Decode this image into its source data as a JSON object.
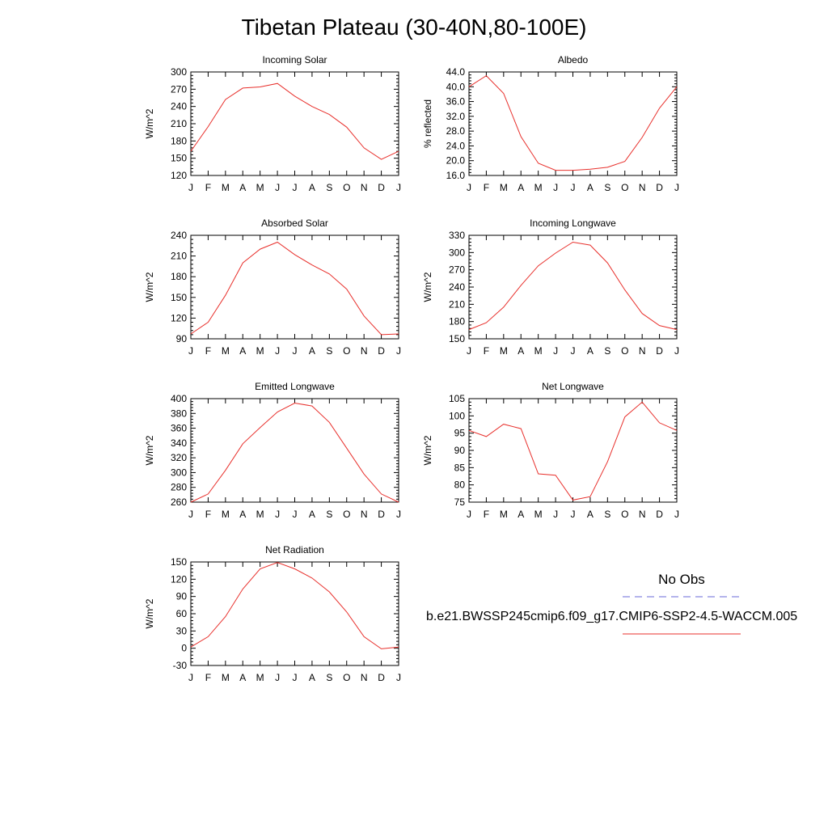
{
  "page": {
    "title": "Tibetan Plateau (30-40N,80-100E)"
  },
  "legend": {
    "obs_label": "No Obs",
    "obs_color": "#6a6ad8",
    "model_label": "b.e21.BWSSP245cmip6.f09_g17.CMIP6-SSP2-4.5-WACCM.005",
    "model_color": "#e8302c"
  },
  "chart_data": [
    {
      "type": "line",
      "title": "Incoming Solar",
      "ylabel": "W/m^2",
      "categories": [
        "J",
        "F",
        "M",
        "A",
        "M",
        "J",
        "J",
        "A",
        "S",
        "O",
        "N",
        "D",
        "J"
      ],
      "ylim": [
        120,
        300
      ],
      "yticks": [
        "120",
        "150",
        "180",
        "210",
        "240",
        "270",
        "300"
      ],
      "series": [
        {
          "values": [
            162,
            205,
            252,
            272,
            274,
            280,
            258,
            240,
            226,
            204,
            168,
            148,
            162
          ]
        }
      ]
    },
    {
      "type": "line",
      "title": "Albedo",
      "ylabel": "% reflected",
      "categories": [
        "J",
        "F",
        "M",
        "A",
        "M",
        "J",
        "J",
        "A",
        "S",
        "O",
        "N",
        "D",
        "J"
      ],
      "ylim": [
        16,
        44
      ],
      "yticks": [
        "16.0",
        "20.0",
        "24.0",
        "28.0",
        "32.0",
        "36.0",
        "40.0",
        "44.0"
      ],
      "series": [
        {
          "values": [
            40.0,
            43.0,
            38.2,
            26.5,
            19.3,
            17.4,
            17.4,
            17.7,
            18.2,
            19.8,
            26.3,
            34.2,
            40.0
          ]
        }
      ]
    },
    {
      "type": "line",
      "title": "Absorbed Solar",
      "ylabel": "W/m^2",
      "categories": [
        "J",
        "F",
        "M",
        "A",
        "M",
        "J",
        "J",
        "A",
        "S",
        "O",
        "N",
        "D",
        "J"
      ],
      "ylim": [
        90,
        240
      ],
      "yticks": [
        "90",
        "120",
        "150",
        "180",
        "210",
        "240"
      ],
      "series": [
        {
          "values": [
            97,
            114,
            153,
            200,
            220,
            230,
            212,
            197,
            184,
            162,
            123,
            96,
            97
          ]
        }
      ]
    },
    {
      "type": "line",
      "title": "Incoming Longwave",
      "ylabel": "W/m^2",
      "categories": [
        "J",
        "F",
        "M",
        "A",
        "M",
        "J",
        "J",
        "A",
        "S",
        "O",
        "N",
        "D",
        "J"
      ],
      "ylim": [
        150,
        330
      ],
      "yticks": [
        "150",
        "180",
        "210",
        "240",
        "270",
        "300",
        "330"
      ],
      "series": [
        {
          "values": [
            166,
            178,
            205,
            243,
            277,
            299,
            318,
            313,
            282,
            235,
            194,
            173,
            166
          ]
        }
      ]
    },
    {
      "type": "line",
      "title": "Emitted Longwave",
      "ylabel": "W/m^2",
      "categories": [
        "J",
        "F",
        "M",
        "A",
        "M",
        "J",
        "J",
        "A",
        "S",
        "O",
        "N",
        "D",
        "J"
      ],
      "ylim": [
        260,
        400
      ],
      "yticks": [
        "260",
        "280",
        "300",
        "320",
        "340",
        "360",
        "380",
        "400"
      ],
      "series": [
        {
          "values": [
            260,
            271,
            303,
            339,
            361,
            382,
            394,
            390,
            368,
            333,
            298,
            271,
            260
          ]
        }
      ]
    },
    {
      "type": "line",
      "title": "Net Longwave",
      "ylabel": "W/m^2",
      "categories": [
        "J",
        "F",
        "M",
        "A",
        "M",
        "J",
        "J",
        "A",
        "S",
        "O",
        "N",
        "D",
        "J"
      ],
      "ylim": [
        75,
        105
      ],
      "yticks": [
        "75",
        "80",
        "85",
        "90",
        "95",
        "100",
        "105"
      ],
      "series": [
        {
          "values": [
            95.8,
            94.0,
            97.6,
            96.3,
            83.2,
            82.8,
            75.6,
            76.6,
            86.7,
            99.7,
            104.0,
            98.0,
            95.8
          ]
        }
      ]
    },
    {
      "type": "line",
      "title": "Net Radiation",
      "ylabel": "W/m^2",
      "categories": [
        "J",
        "F",
        "M",
        "A",
        "M",
        "J",
        "J",
        "A",
        "S",
        "O",
        "N",
        "D",
        "J"
      ],
      "ylim": [
        -30,
        150
      ],
      "yticks": [
        "-30",
        "0",
        "30",
        "60",
        "90",
        "120",
        "150"
      ],
      "series": [
        {
          "values": [
            2,
            20,
            55,
            103,
            138,
            149,
            138,
            122,
            98,
            63,
            20,
            -1,
            2
          ]
        }
      ]
    }
  ]
}
